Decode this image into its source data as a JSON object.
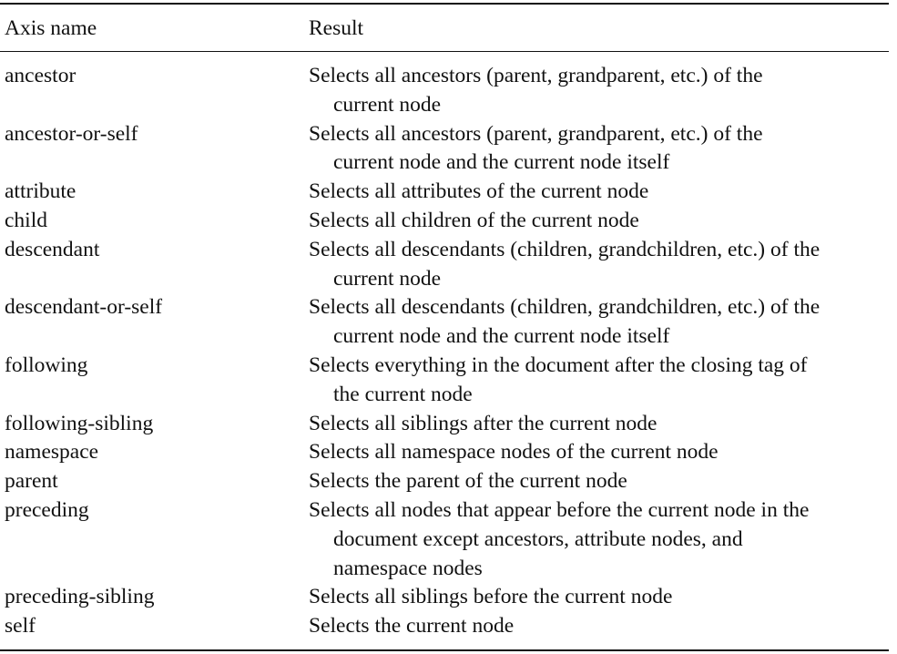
{
  "table": {
    "headers": {
      "axis": "Axis name",
      "result": "Result"
    },
    "rows": [
      {
        "axis": "ancestor",
        "result": [
          "Selects all ancestors (parent, grandparent, etc.) of the",
          "current node"
        ]
      },
      {
        "axis": "ancestor-or-self",
        "result": [
          "Selects all ancestors (parent, grandparent, etc.) of the",
          "current node and the current node itself"
        ]
      },
      {
        "axis": "attribute",
        "result": [
          "Selects all attributes of the current node"
        ]
      },
      {
        "axis": "child",
        "result": [
          "Selects all children of the current node"
        ]
      },
      {
        "axis": "descendant",
        "result": [
          "Selects all descendants (children, grandchildren, etc.) of the",
          "current node"
        ]
      },
      {
        "axis": "descendant-or-self",
        "result": [
          "Selects all descendants (children, grandchildren, etc.) of the",
          "current node and the current node itself"
        ]
      },
      {
        "axis": "following",
        "result": [
          "Selects everything in the document after the closing tag of",
          "the current node"
        ]
      },
      {
        "axis": "following-sibling",
        "result": [
          "Selects all siblings after the current node"
        ]
      },
      {
        "axis": "namespace",
        "result": [
          "Selects all namespace nodes of the current node"
        ]
      },
      {
        "axis": "parent",
        "result": [
          "Selects the parent of the current node"
        ]
      },
      {
        "axis": "preceding",
        "result": [
          "Selects all nodes that appear before the current node in the",
          "document except ancestors, attribute nodes, and",
          "namespace nodes"
        ]
      },
      {
        "axis": "preceding-sibling",
        "result": [
          "Selects all siblings before the current node"
        ]
      },
      {
        "axis": "self",
        "result": [
          "Selects the current node"
        ]
      }
    ]
  }
}
